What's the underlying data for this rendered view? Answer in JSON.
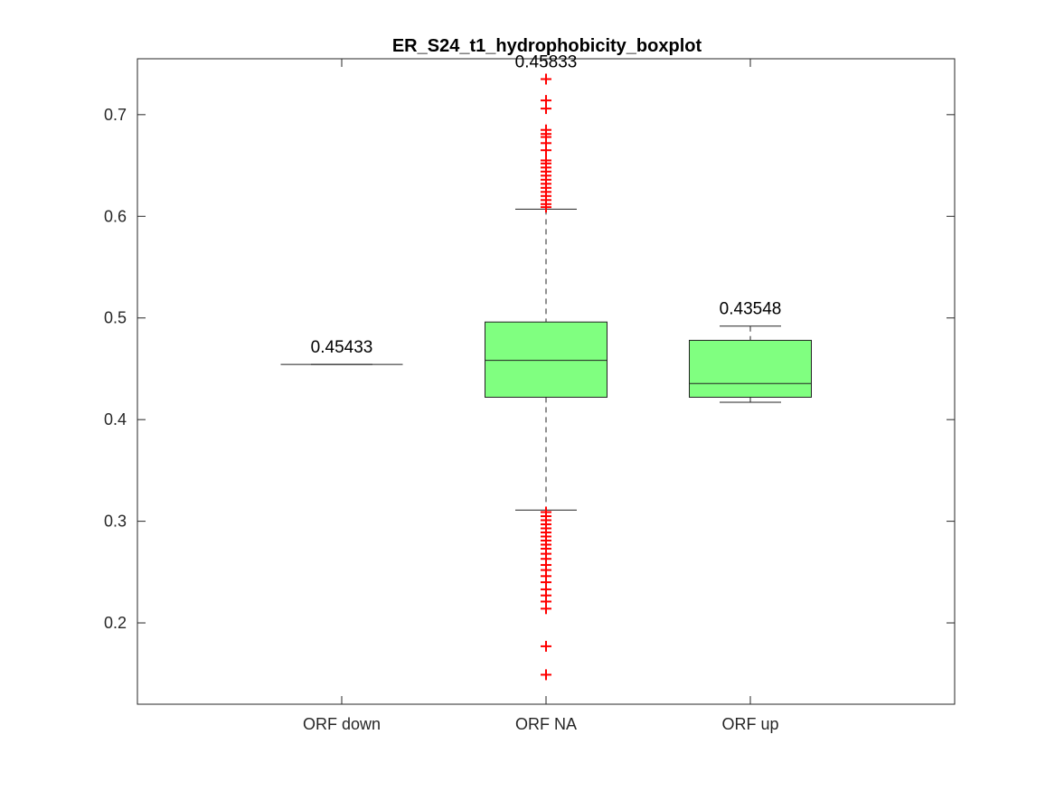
{
  "chart_data": {
    "type": "boxplot",
    "title": "ER_S24_t1_hydrophobicity_boxplot",
    "xlabel": "",
    "ylabel": "",
    "categories": [
      "ORF down",
      "ORF NA",
      "ORF up"
    ],
    "ylim": [
      0.12,
      0.755
    ],
    "yticks": [
      0.2,
      0.3,
      0.4,
      0.5,
      0.6,
      0.7
    ],
    "ytick_labels": [
      "0.2",
      "0.3",
      "0.4",
      "0.5",
      "0.6",
      "0.7"
    ],
    "grid": false,
    "box_color": "#80ff80",
    "outlier_color": "#ff0000",
    "boxes": [
      {
        "category": "ORF down",
        "median": 0.45433,
        "q1": 0.45433,
        "q3": 0.45433,
        "whisker_low": 0.45433,
        "whisker_high": 0.45433,
        "median_label": "0.45433",
        "outliers": []
      },
      {
        "category": "ORF NA",
        "median": 0.45833,
        "q1": 0.422,
        "q3": 0.496,
        "whisker_low": 0.311,
        "whisker_high": 0.607,
        "median_label": "0.45833",
        "outliers": [
          0.735,
          0.714,
          0.706,
          0.685,
          0.681,
          0.678,
          0.672,
          0.665,
          0.655,
          0.652,
          0.648,
          0.644,
          0.64,
          0.636,
          0.632,
          0.628,
          0.624,
          0.62,
          0.616,
          0.612,
          0.609,
          0.309,
          0.305,
          0.301,
          0.297,
          0.293,
          0.289,
          0.285,
          0.281,
          0.277,
          0.273,
          0.268,
          0.263,
          0.257,
          0.252,
          0.246,
          0.24,
          0.233,
          0.227,
          0.221,
          0.214,
          0.177,
          0.149
        ]
      },
      {
        "category": "ORF up",
        "median": 0.43548,
        "q1": 0.422,
        "q3": 0.478,
        "whisker_low": 0.417,
        "whisker_high": 0.492,
        "median_label": "0.43548",
        "outliers": []
      }
    ]
  }
}
